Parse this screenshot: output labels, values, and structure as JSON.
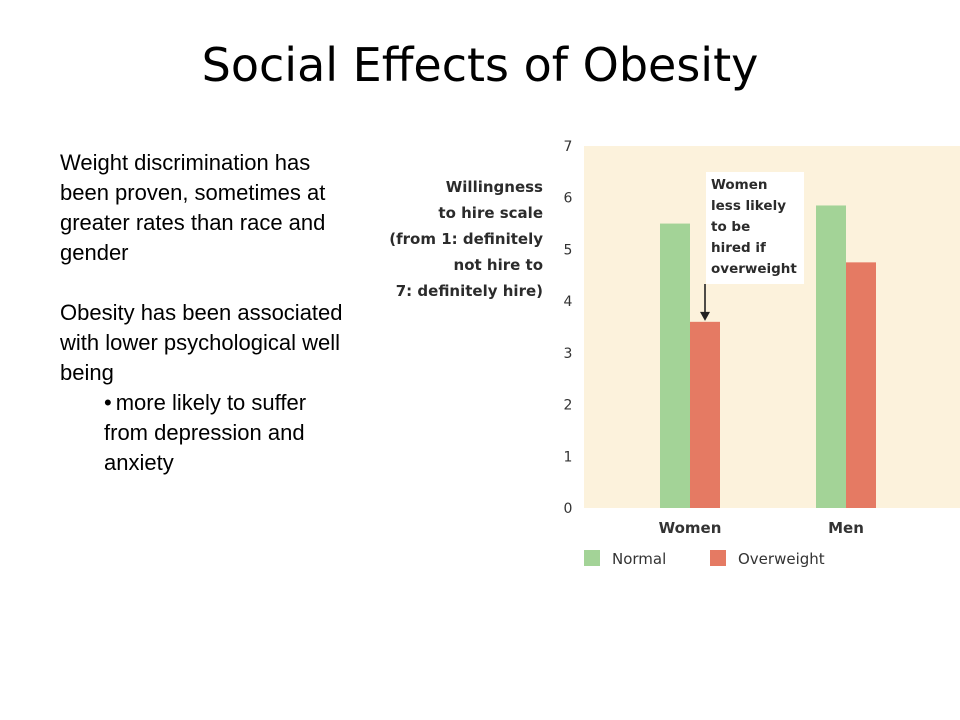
{
  "slide": {
    "title": "Social Effects of Obesity",
    "paragraph1": "Weight discrimination has been proven, sometimes at greater rates than race and gender",
    "paragraph2": "Obesity has been associated with lower psychological well being",
    "bullet": "more likely to suffer from depression and anxiety"
  },
  "chart_data": {
    "type": "bar",
    "ylabel": [
      "Willingness",
      "to hire scale",
      "(from 1: definitely",
      "not hire to",
      "7: definitely hire)"
    ],
    "categories": [
      "Women",
      "Men"
    ],
    "series": [
      {
        "name": "Normal",
        "values": [
          5.5,
          5.85
        ],
        "color": "#a3d397"
      },
      {
        "name": "Overweight",
        "values": [
          3.6,
          4.75
        ],
        "color": "#e57a63"
      }
    ],
    "ylim": [
      0,
      7
    ],
    "yticks": [
      "0",
      "1",
      "2",
      "3",
      "4",
      "5",
      "6",
      "7"
    ],
    "annotation": {
      "lines": [
        "Women",
        "less likely",
        "to be",
        "hired if",
        "overweight"
      ],
      "points_to": {
        "category": "Women",
        "series": "Overweight"
      }
    },
    "legend": "bottom",
    "grid": false,
    "background": "#fcf2dc"
  }
}
